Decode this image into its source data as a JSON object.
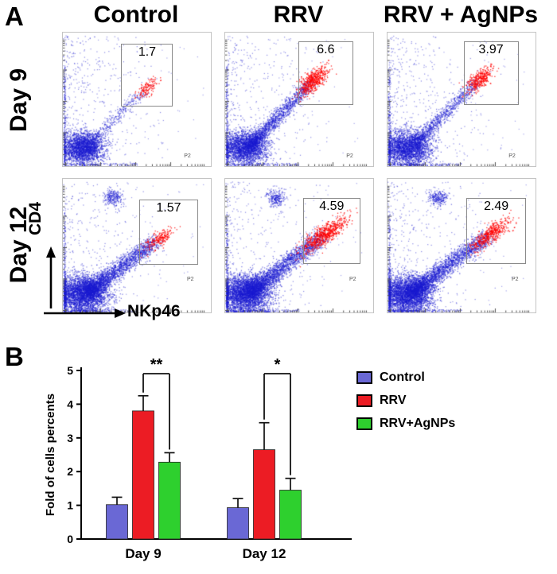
{
  "panels": {
    "a_label": "A",
    "b_label": "B"
  },
  "panel_a": {
    "col_headers": [
      "Control",
      "RRV",
      "RRV + AgNPs"
    ],
    "row_labels": [
      "Day 9",
      "Day 12"
    ],
    "x_axis_label": "NKp46",
    "y_axis_label": "CD4",
    "gate_name": "P2",
    "plots": [
      {
        "day": "Day 9",
        "condition": "Control",
        "gate_percent": "1.7"
      },
      {
        "day": "Day 9",
        "condition": "RRV",
        "gate_percent": "6.6"
      },
      {
        "day": "Day 9",
        "condition": "RRV + AgNPs",
        "gate_percent": "3.97"
      },
      {
        "day": "Day 12",
        "condition": "Control",
        "gate_percent": "1.57"
      },
      {
        "day": "Day 12",
        "condition": "RRV",
        "gate_percent": "4.59"
      },
      {
        "day": "Day 12",
        "condition": "RRV + AgNPs",
        "gate_percent": "2.49"
      }
    ]
  },
  "chart_data": {
    "type": "bar",
    "title": "",
    "categories": [
      "Day 9",
      "Day 12"
    ],
    "series": [
      {
        "name": "Control",
        "color": "#6a68d5",
        "values": [
          1.02,
          0.93
        ],
        "errors": [
          0.22,
          0.27
        ]
      },
      {
        "name": "RRV",
        "color": "#ec1c24",
        "values": [
          3.8,
          2.65
        ],
        "errors": [
          0.45,
          0.8
        ]
      },
      {
        "name": "RRV+AgNPs",
        "color": "#2ed02e",
        "values": [
          2.28,
          1.45
        ],
        "errors": [
          0.28,
          0.35
        ]
      }
    ],
    "ylabel": "Fold of cells percents",
    "ylim": [
      0,
      5
    ],
    "yticks": [
      0,
      1,
      2,
      3,
      4,
      5
    ],
    "grid": false,
    "legend_position": "right",
    "significance": [
      {
        "category": "Day 9",
        "between": [
          "RRV",
          "RRV+AgNPs"
        ],
        "label": "**"
      },
      {
        "category": "Day 12",
        "between": [
          "RRV",
          "RRV+AgNPs"
        ],
        "label": "*"
      }
    ]
  }
}
